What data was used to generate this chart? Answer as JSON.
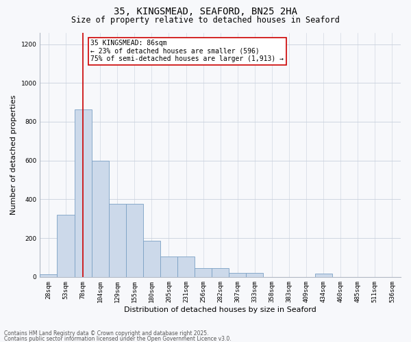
{
  "title_line1": "35, KINGSMEAD, SEAFORD, BN25 2HA",
  "title_line2": "Size of property relative to detached houses in Seaford",
  "xlabel": "Distribution of detached houses by size in Seaford",
  "ylabel": "Number of detached properties",
  "categories": [
    "28sqm",
    "53sqm",
    "78sqm",
    "104sqm",
    "129sqm",
    "155sqm",
    "180sqm",
    "205sqm",
    "231sqm",
    "256sqm",
    "282sqm",
    "307sqm",
    "333sqm",
    "358sqm",
    "383sqm",
    "409sqm",
    "434sqm",
    "460sqm",
    "485sqm",
    "511sqm",
    "536sqm"
  ],
  "values": [
    15,
    320,
    865,
    600,
    375,
    375,
    185,
    105,
    105,
    45,
    45,
    20,
    20,
    0,
    0,
    0,
    18,
    0,
    0,
    0,
    0
  ],
  "bar_color": "#ccd9ea",
  "bar_edge_color": "#7aa0c4",
  "vline_color": "#cc0000",
  "annotation_text": "35 KINGSMEAD: 86sqm\n← 23% of detached houses are smaller (596)\n75% of semi-detached houses are larger (1,913) →",
  "ylim": [
    0,
    1260
  ],
  "yticks": [
    0,
    200,
    400,
    600,
    800,
    1000,
    1200
  ],
  "bg_color": "#f7f8fb",
  "grid_color": "#c8d0dc",
  "title_fontsize": 10,
  "subtitle_fontsize": 8.5,
  "axis_label_fontsize": 8,
  "tick_fontsize": 6.5,
  "annot_fontsize": 7,
  "footer_fontsize": 5.5,
  "footer_line1": "Contains HM Land Registry data © Crown copyright and database right 2025.",
  "footer_line2": "Contains public sector information licensed under the Open Government Licence v3.0."
}
